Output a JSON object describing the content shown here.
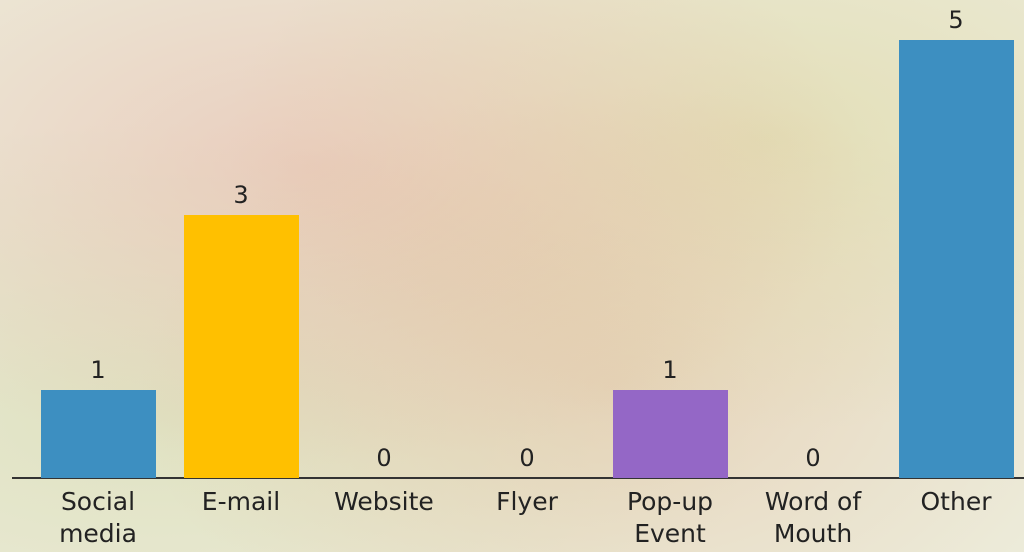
{
  "chart_data": {
    "type": "bar",
    "categories": [
      "Social media",
      "E-mail",
      "Website",
      "Flyer",
      "Pop-up Event",
      "Word of Mouth",
      "Other"
    ],
    "values": [
      1,
      3,
      0,
      0,
      1,
      0,
      5
    ],
    "colors": [
      "#3d8fc1",
      "#ffc000",
      null,
      null,
      "#9467c6",
      null,
      "#3d8fc1"
    ]
  }
}
